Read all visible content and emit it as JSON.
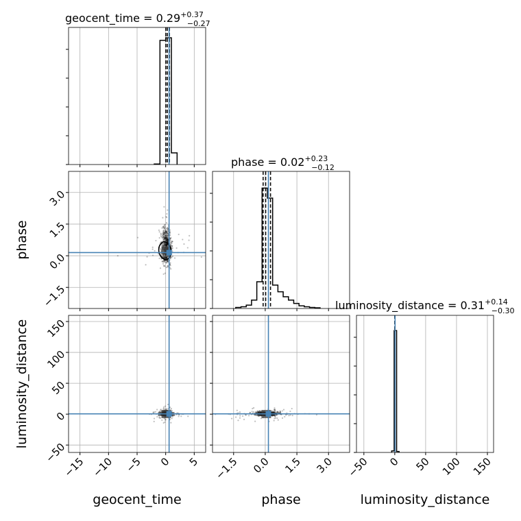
{
  "chart_data": {
    "type": "corner",
    "parameters": [
      "geocent_time",
      "phase",
      "luminosity_distance"
    ],
    "titles": [
      {
        "param": "geocent_time",
        "median": "0.29",
        "plus": "+0.37",
        "minus": "−0.27"
      },
      {
        "param": "phase",
        "median": "0.02",
        "plus": "+0.23",
        "minus": "−0.12"
      },
      {
        "param": "luminosity_distance",
        "median": "0.31",
        "plus": "+0.14",
        "minus": "−0.30"
      }
    ],
    "axis_labels": {
      "x": [
        "geocent_time",
        "phase",
        "luminosity_distance"
      ],
      "y": [
        "phase",
        "luminosity_distance"
      ]
    },
    "ranges": {
      "geocent_time": [
        -17,
        7
      ],
      "phase": [
        -2.5,
        4.0
      ],
      "luminosity_distance": [
        -62,
        160
      ]
    },
    "ticks": {
      "geocent_time": {
        "values": [
          -15,
          -10,
          -5,
          0,
          5
        ],
        "labels": [
          "−15",
          "−10",
          "−5",
          "0",
          "5"
        ]
      },
      "phase": {
        "values": [
          -1.5,
          0.0,
          1.5,
          3.0
        ],
        "labels": [
          "−1.5",
          "0.0",
          "1.5",
          "3.0"
        ]
      },
      "luminosity_distance": {
        "values": [
          -50,
          0,
          50,
          100,
          150
        ],
        "labels": [
          "−50",
          "0",
          "50",
          "100",
          "150"
        ]
      }
    },
    "truths": {
      "geocent_time": 0.6,
      "phase": 0.15,
      "luminosity_distance": 0.5
    },
    "quantiles": {
      "geocent_time": [
        0.02,
        0.29,
        0.66
      ],
      "phase": [
        -0.1,
        0.02,
        0.25
      ],
      "luminosity_distance": [
        0.01,
        0.31,
        0.45
      ]
    },
    "histograms": [
      {
        "param": "geocent_time",
        "edges": [
          -2,
          -1,
          0,
          1,
          2
        ],
        "counts": [
          0.2,
          48,
          49,
          4.5
        ],
        "ylim": [
          0,
          53
        ]
      },
      {
        "param": "phase",
        "edges": [
          -1.4,
          -1.15,
          -0.9,
          -0.65,
          -0.4,
          -0.15,
          0.1,
          0.35,
          0.6,
          0.85,
          1.1,
          1.35,
          1.6,
          1.85,
          2.1,
          2.35,
          2.6
        ],
        "counts": [
          0.3,
          0.5,
          1,
          2.5,
          8,
          36,
          33,
          7,
          5,
          3.5,
          2.5,
          1.5,
          0.8,
          0.5,
          0.3,
          0.2
        ],
        "ylim": [
          0,
          41
        ]
      },
      {
        "param": "luminosity_distance",
        "edges": [
          -5,
          -1,
          3,
          7
        ],
        "counts": [
          0.5,
          40,
          0.3
        ],
        "ylim": [
          0,
          45
        ]
      }
    ],
    "grid": true,
    "truth_color": "#4682b4"
  }
}
